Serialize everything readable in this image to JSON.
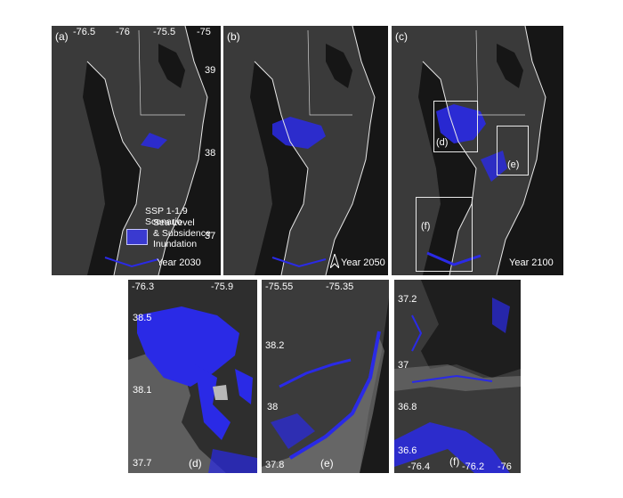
{
  "colors": {
    "inundation": "#2a2ae6",
    "land": "#3a3a3a",
    "water": "#161616",
    "coast": "#e9e9e9"
  },
  "top_panels": [
    {
      "label": "(a)",
      "year": "Year 2030",
      "ticks_lon": [
        "-76.5",
        "-76",
        "-75.5",
        "-75"
      ],
      "ticks_lat": [
        "39",
        "38",
        "37"
      ]
    },
    {
      "label": "(b)",
      "year": "Year 2050"
    },
    {
      "label": "(c)",
      "year": "Year 2100",
      "insets": [
        "(d)",
        "(e)",
        "(f)"
      ]
    }
  ],
  "legend": {
    "title": "SSP 1-1.9 Scenario",
    "item_lines": [
      "Sea Level",
      "& Subsidence",
      "Inundation"
    ]
  },
  "bottom_panels": [
    {
      "label": "(d)",
      "ticks_lon": [
        "-76.3",
        "-75.9"
      ],
      "ticks_lat": [
        "38.5",
        "38.1",
        "37.7"
      ]
    },
    {
      "label": "(e)",
      "ticks_lon": [
        "-75.55",
        "-75.35"
      ],
      "ticks_lat": [
        "38.2",
        "38",
        "37.8"
      ]
    },
    {
      "label": "(f)",
      "ticks_lon": [
        "-76.4",
        "-76.2",
        "-76"
      ],
      "ticks_lat": [
        "37.2",
        "37",
        "36.8",
        "36.6"
      ]
    }
  ]
}
